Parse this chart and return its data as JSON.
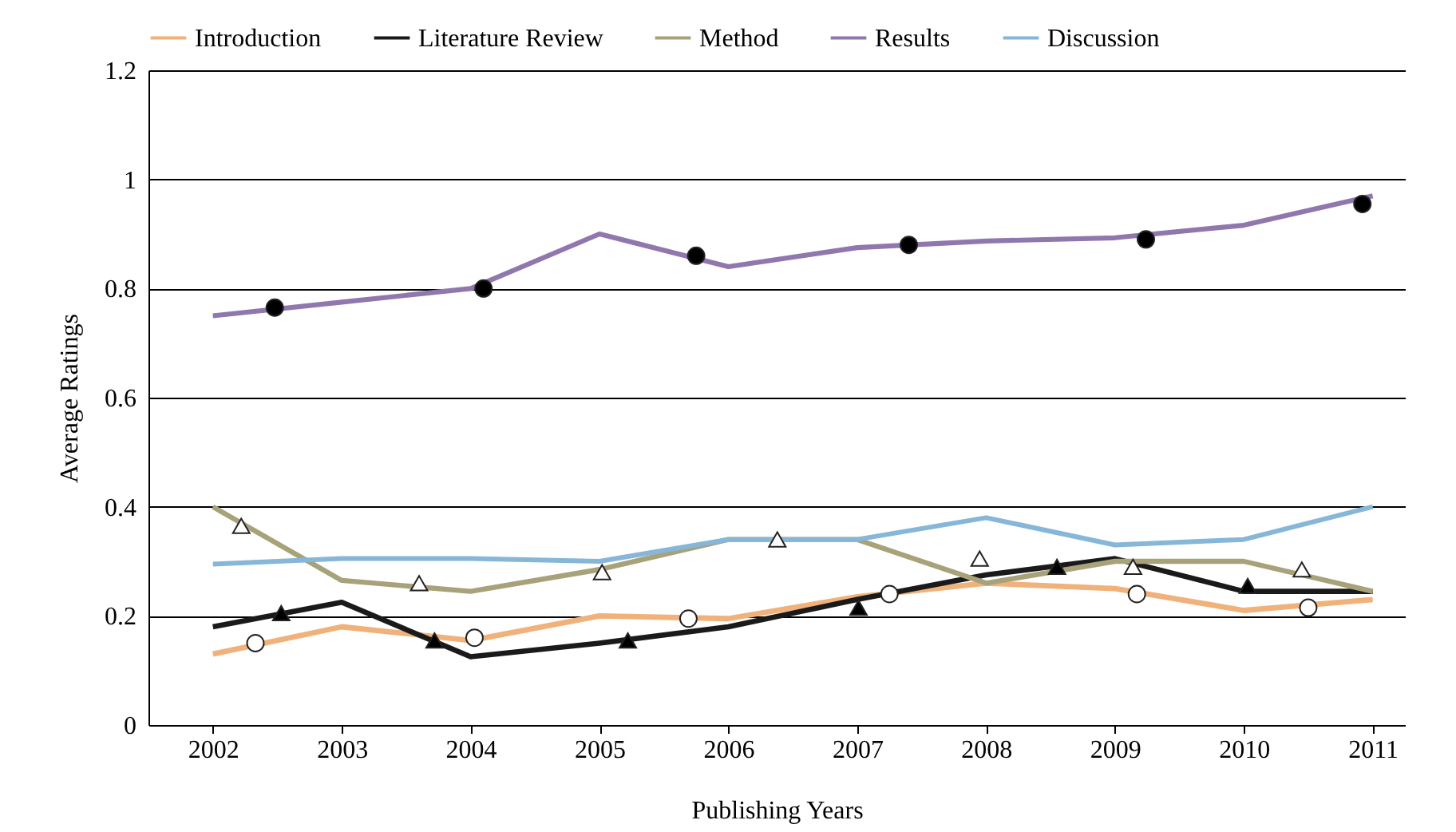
{
  "chart_data": {
    "type": "line",
    "xlabel": "Publishing Years",
    "ylabel": "Average Ratings",
    "x": [
      2002,
      2003,
      2004,
      2005,
      2006,
      2007,
      2008,
      2009,
      2010,
      2011
    ],
    "series": [
      {
        "name": "Introduction",
        "color": "#f0b27a",
        "values": [
          0.13,
          0.18,
          0.155,
          0.2,
          0.195,
          0.235,
          0.26,
          0.25,
          0.21,
          0.23
        ]
      },
      {
        "name": "Literature Review",
        "color": "#1a1a1a",
        "values": [
          0.18,
          0.225,
          0.125,
          0.15,
          0.18,
          0.23,
          0.275,
          0.305,
          0.245,
          0.245
        ]
      },
      {
        "name": "Method",
        "color": "#a8a27a",
        "values": [
          0.4,
          0.265,
          0.245,
          0.285,
          0.34,
          0.34,
          0.26,
          0.3,
          0.3,
          0.245
        ]
      },
      {
        "name": "Results",
        "color": "#9077ad",
        "values": [
          0.75,
          0.775,
          0.8,
          0.9,
          0.84,
          0.875,
          0.887,
          0.893,
          0.916,
          0.97
        ]
      },
      {
        "name": "Discussion",
        "color": "#86b6d8",
        "values": [
          0.295,
          0.305,
          0.305,
          0.3,
          0.34,
          0.34,
          0.38,
          0.33,
          0.34,
          0.4
        ]
      },
      {
        "type": "scatter",
        "marker": "circle",
        "color": "#ffffff",
        "x": [
          2002.33,
          2004.03,
          2005.69,
          2007.25,
          2009.17,
          2010.5
        ],
        "values": [
          0.15,
          0.16,
          0.195,
          0.24,
          0.24,
          0.215
        ]
      },
      {
        "type": "scatter",
        "marker": "triangle",
        "color": "#000000",
        "x": [
          2002.53,
          2003.72,
          2005.22,
          2007.01,
          2008.55,
          2010.03
        ],
        "values": [
          0.205,
          0.155,
          0.155,
          0.215,
          0.29,
          0.255
        ]
      },
      {
        "type": "scatter",
        "marker": "triangle",
        "color": "#ffffff",
        "x": [
          2002.22,
          2003.6,
          2005.02,
          2006.38,
          2007.95,
          2009.14,
          2010.45
        ],
        "values": [
          0.365,
          0.26,
          0.28,
          0.34,
          0.305,
          0.29,
          0.285
        ]
      },
      {
        "type": "scatter",
        "marker": "circle",
        "color": "#000000",
        "x": [
          2002.48,
          2004.1,
          2005.75,
          2007.4,
          2009.24,
          2010.92
        ],
        "values": [
          0.765,
          0.8,
          0.86,
          0.88,
          0.89,
          0.955
        ]
      }
    ],
    "xlim": [
      2001.5,
      2011.25
    ],
    "xticks": [
      2002,
      2003,
      2004,
      2005,
      2006,
      2007,
      2008,
      2009,
      2010,
      2011
    ],
    "ylim": [
      0,
      1.2
    ],
    "yticks": [
      0,
      0.2,
      0.4,
      0.6,
      0.8,
      1,
      1.2
    ],
    "grid": "y",
    "legend": "top"
  }
}
